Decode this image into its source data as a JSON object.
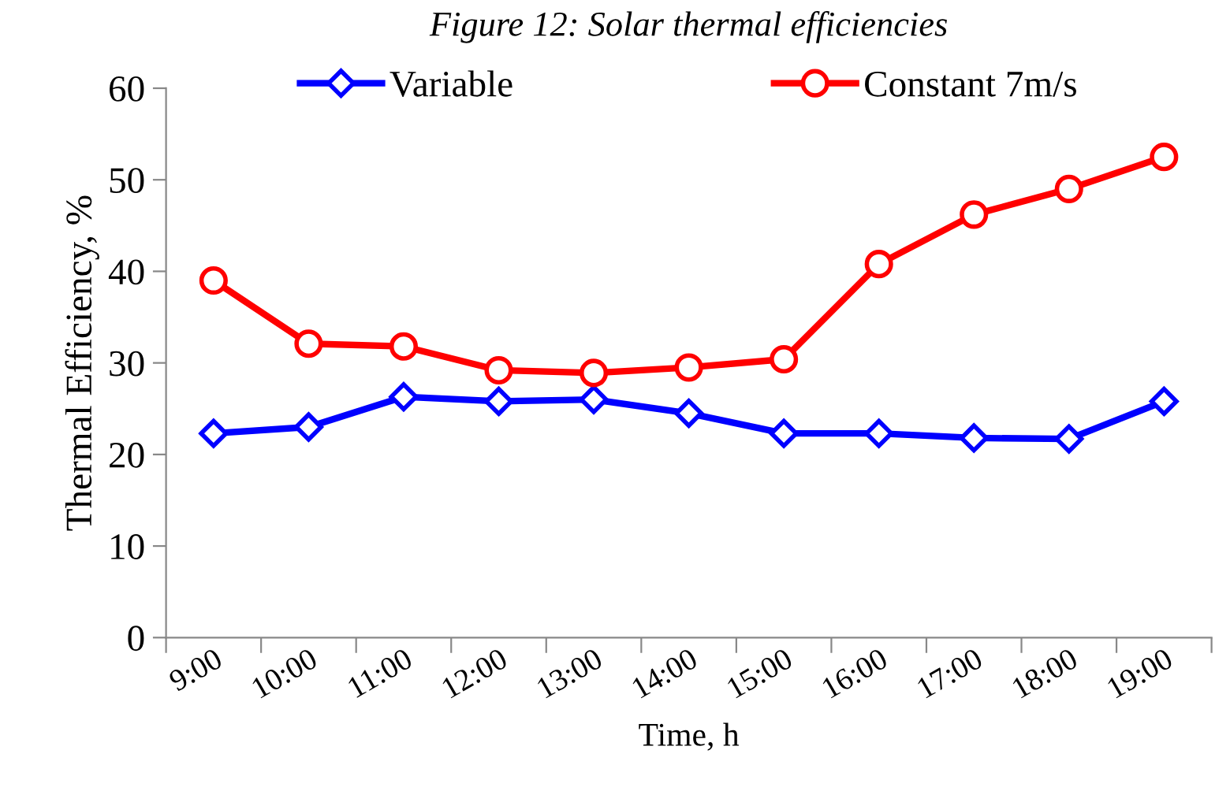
{
  "chart_data": {
    "type": "line",
    "title": "Figure 12: Solar thermal efficiencies",
    "xlabel": "Time, h",
    "ylabel": "Thermal Efficiency, %",
    "categories": [
      "9:00",
      "10:00",
      "11:00",
      "12:00",
      "13:00",
      "14:00",
      "15:00",
      "16:00",
      "17:00",
      "18:00",
      "19:00"
    ],
    "series": [
      {
        "name": "Variable",
        "color": "#0000ff",
        "marker": "diamond",
        "values": [
          22.3,
          23.0,
          26.3,
          25.8,
          26.0,
          24.5,
          22.3,
          22.3,
          21.8,
          21.7,
          25.8
        ]
      },
      {
        "name": "Constant 7m/s",
        "color": "#ff0000",
        "marker": "circle",
        "values": [
          39.0,
          32.1,
          31.8,
          29.2,
          28.9,
          29.5,
          30.4,
          40.8,
          46.2,
          49.0,
          52.5
        ]
      }
    ],
    "ylim": [
      0,
      60
    ],
    "yticks": [
      0,
      10,
      20,
      30,
      40,
      50,
      60
    ],
    "grid": false,
    "legend": "top",
    "line_style": "solid"
  }
}
